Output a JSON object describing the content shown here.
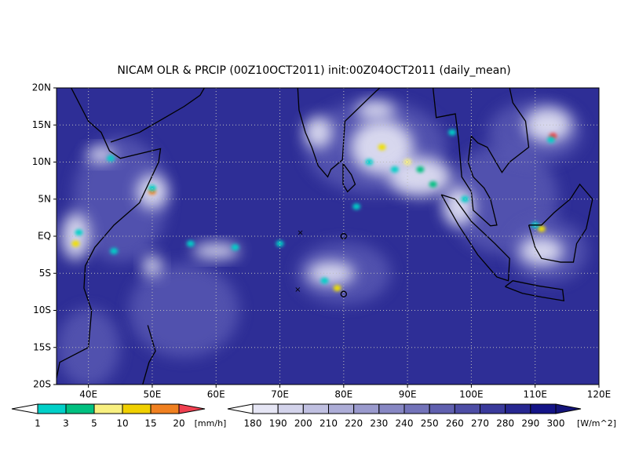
{
  "title": "NICAM OLR & PRCIP (00Z10OCT2011) init:00Z04OCT2011 (daily_mean)",
  "map": {
    "lat_labels": [
      "20N",
      "15N",
      "10N",
      "5N",
      "EQ",
      "5S",
      "10S",
      "15S",
      "20S"
    ],
    "lon_labels": [
      "40E",
      "50E",
      "60E",
      "70E",
      "80E",
      "90E",
      "100E",
      "110E",
      "120E"
    ]
  },
  "precip_legend": {
    "labels": [
      "1",
      "3",
      "5",
      "10",
      "15",
      "20"
    ],
    "unit": "[mm/h]"
  },
  "olr_legend": {
    "labels": [
      "180",
      "190",
      "200",
      "210",
      "220",
      "230",
      "240",
      "250",
      "260",
      "270",
      "280",
      "290",
      "300"
    ],
    "unit": "[W/m^2]"
  }
}
